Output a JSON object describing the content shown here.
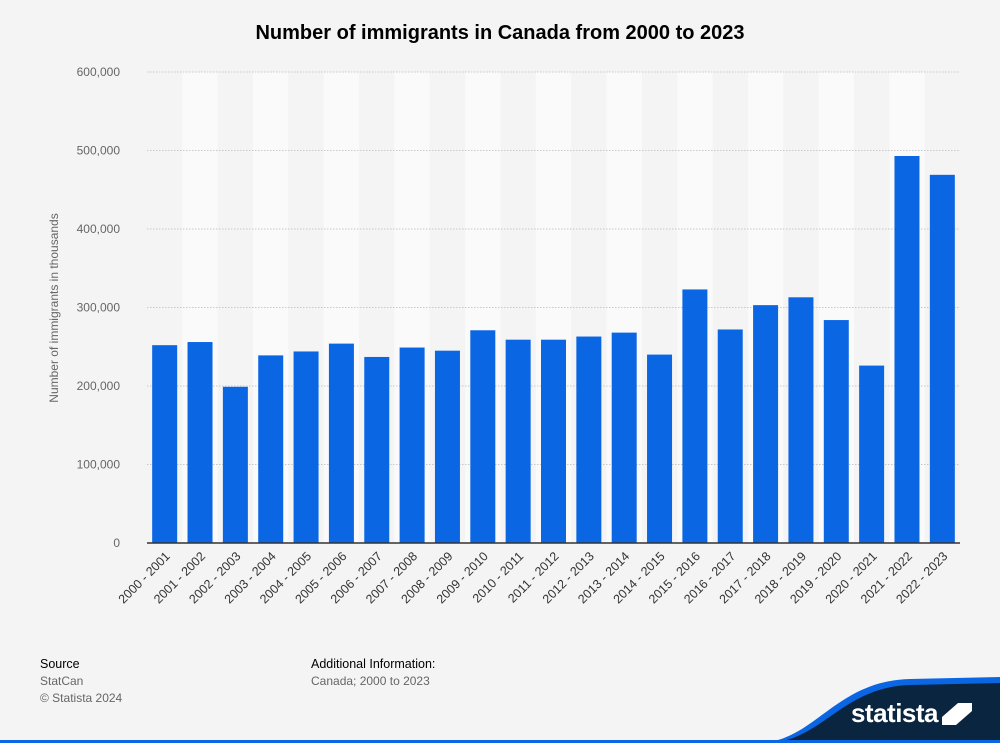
{
  "chart_data": {
    "type": "bar",
    "title": "Number of immigrants in Canada from 2000 to 2023",
    "xlabel": "",
    "ylabel": "Number of immigrants in thousands",
    "categories": [
      "2000 - 2001",
      "2001 - 2002",
      "2002 - 2003",
      "2003 - 2004",
      "2004 - 2005",
      "2005 - 2006",
      "2006 - 2007",
      "2007 - 2008",
      "2008 - 2009",
      "2009 - 2010",
      "2010 - 2011",
      "2011 - 2012",
      "2012 - 2013",
      "2013 - 2014",
      "2014 - 2015",
      "2015 - 2016",
      "2016 - 2017",
      "2017 - 2018",
      "2018 - 2019",
      "2019 - 2020",
      "2020 - 2021",
      "2021 - 2022",
      "2022 - 2023"
    ],
    "values": [
      252000,
      256000,
      199000,
      239000,
      244000,
      254000,
      237000,
      249000,
      245000,
      271000,
      259000,
      259000,
      263000,
      268000,
      240000,
      323000,
      272000,
      303000,
      313000,
      284000,
      226000,
      493000,
      469000
    ],
    "ylim": [
      0,
      600000
    ],
    "yticks": [
      0,
      100000,
      200000,
      300000,
      400000,
      500000,
      600000
    ],
    "ytick_labels": [
      "0",
      "100,000",
      "200,000",
      "300,000",
      "400,000",
      "500,000",
      "600,000"
    ],
    "grid": true,
    "bar_color": "#0b66e4"
  },
  "footer": {
    "source_heading": "Source",
    "source_lines": [
      "StatCan",
      "© Statista 2024"
    ],
    "info_heading": "Additional Information:",
    "info_lines": [
      "Canada; 2000 to 2023"
    ]
  },
  "brand": {
    "name": "statista",
    "color": "#0b66e4",
    "dark_color": "#0a2540"
  }
}
